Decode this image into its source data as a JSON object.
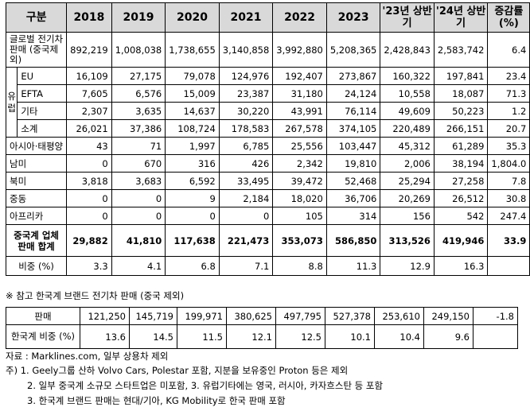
{
  "headers": [
    "구분",
    "2018",
    "2019",
    "2020",
    "2021",
    "2022",
    "2023",
    "'23년 상반기",
    "'24년 상반기",
    "증감률 (%)"
  ],
  "rows": {
    "global": {
      "label": "글로벌 전기차판매 (중국제외)",
      "values": [
        "892,219",
        "1,008,038",
        "1,738,655",
        "3,140,858",
        "3,992,880",
        "5,208,365",
        "2,428,843",
        "2,583,742",
        "6.4"
      ]
    },
    "europe_group_label": "유럽",
    "eu": {
      "label": "EU",
      "values": [
        "16,109",
        "27,175",
        "79,078",
        "124,976",
        "192,407",
        "273,867",
        "160,322",
        "197,841",
        "23.4"
      ]
    },
    "efta": {
      "label": "EFTA",
      "values": [
        "7,605",
        "6,576",
        "15,009",
        "23,387",
        "31,180",
        "24,124",
        "10,558",
        "18,087",
        "71.3"
      ]
    },
    "other": {
      "label": "기타",
      "values": [
        "2,307",
        "3,635",
        "14,637",
        "30,220",
        "43,991",
        "76,114",
        "49,609",
        "50,223",
        "1.2"
      ]
    },
    "subtotal": {
      "label": "소계",
      "values": [
        "26,021",
        "37,386",
        "108,724",
        "178,583",
        "267,578",
        "374,105",
        "220,489",
        "266,151",
        "20.7"
      ]
    },
    "asia": {
      "label": "아시아·태평양",
      "values": [
        "43",
        "71",
        "1,997",
        "6,785",
        "25,556",
        "103,447",
        "45,312",
        "61,289",
        "35.3"
      ]
    },
    "latam": {
      "label": "남미",
      "values": [
        "0",
        "670",
        "316",
        "426",
        "2,342",
        "19,810",
        "2,006",
        "38,194",
        "1,804.0"
      ]
    },
    "na": {
      "label": "북미",
      "values": [
        "3,818",
        "3,683",
        "6,592",
        "33,495",
        "39,472",
        "52,468",
        "25,294",
        "27,258",
        "7.8"
      ]
    },
    "me": {
      "label": "중동",
      "values": [
        "0",
        "0",
        "9",
        "2,184",
        "18,020",
        "36,706",
        "20,269",
        "26,512",
        "30.8"
      ]
    },
    "africa": {
      "label": "아프리카",
      "values": [
        "0",
        "0",
        "0",
        "0",
        "105",
        "314",
        "156",
        "542",
        "247.4"
      ]
    },
    "total": {
      "label": "중국계 업체 판매 합계",
      "values": [
        "29,882",
        "41,810",
        "117,638",
        "221,473",
        "353,073",
        "586,850",
        "313,526",
        "419,946",
        "33.9"
      ]
    },
    "share": {
      "label": "비중 (%)",
      "values": [
        "3.3",
        "4.1",
        "6.8",
        "7.1",
        "8.8",
        "11.3",
        "12.9",
        "16.3",
        ""
      ]
    }
  },
  "reference_title": "※ 참고 한국계 브랜드 전기차 판매 (중국 제외)",
  "korea": {
    "sales": {
      "label": "판매",
      "values": [
        "121,250",
        "145,719",
        "199,971",
        "380,625",
        "497,795",
        "527,378",
        "253,610",
        "249,150",
        "-1.8"
      ]
    },
    "share": {
      "label": "한국계 비중 (%)",
      "values": [
        "13.6",
        "14.5",
        "11.5",
        "12.1",
        "12.5",
        "10.1",
        "10.4",
        "9.6",
        ""
      ]
    }
  },
  "notes": {
    "source": "자료 : Marklines.com, 일부 상용차 제외",
    "n1": "주) 1. Geely그룹 산하 Volvo Cars, Polestar 포함, 지분을 보유중인 Proton 등은 제외",
    "n2": "2. 일부 중국계 소규모 스타트업은 미포함, 3. 유럽기타에는 영국, 러시아, 카자흐스탄 등 포함",
    "n3": "3. 한국계 브랜드 판매는 현대/기아, KG Mobility로 한국 판매 포함"
  }
}
